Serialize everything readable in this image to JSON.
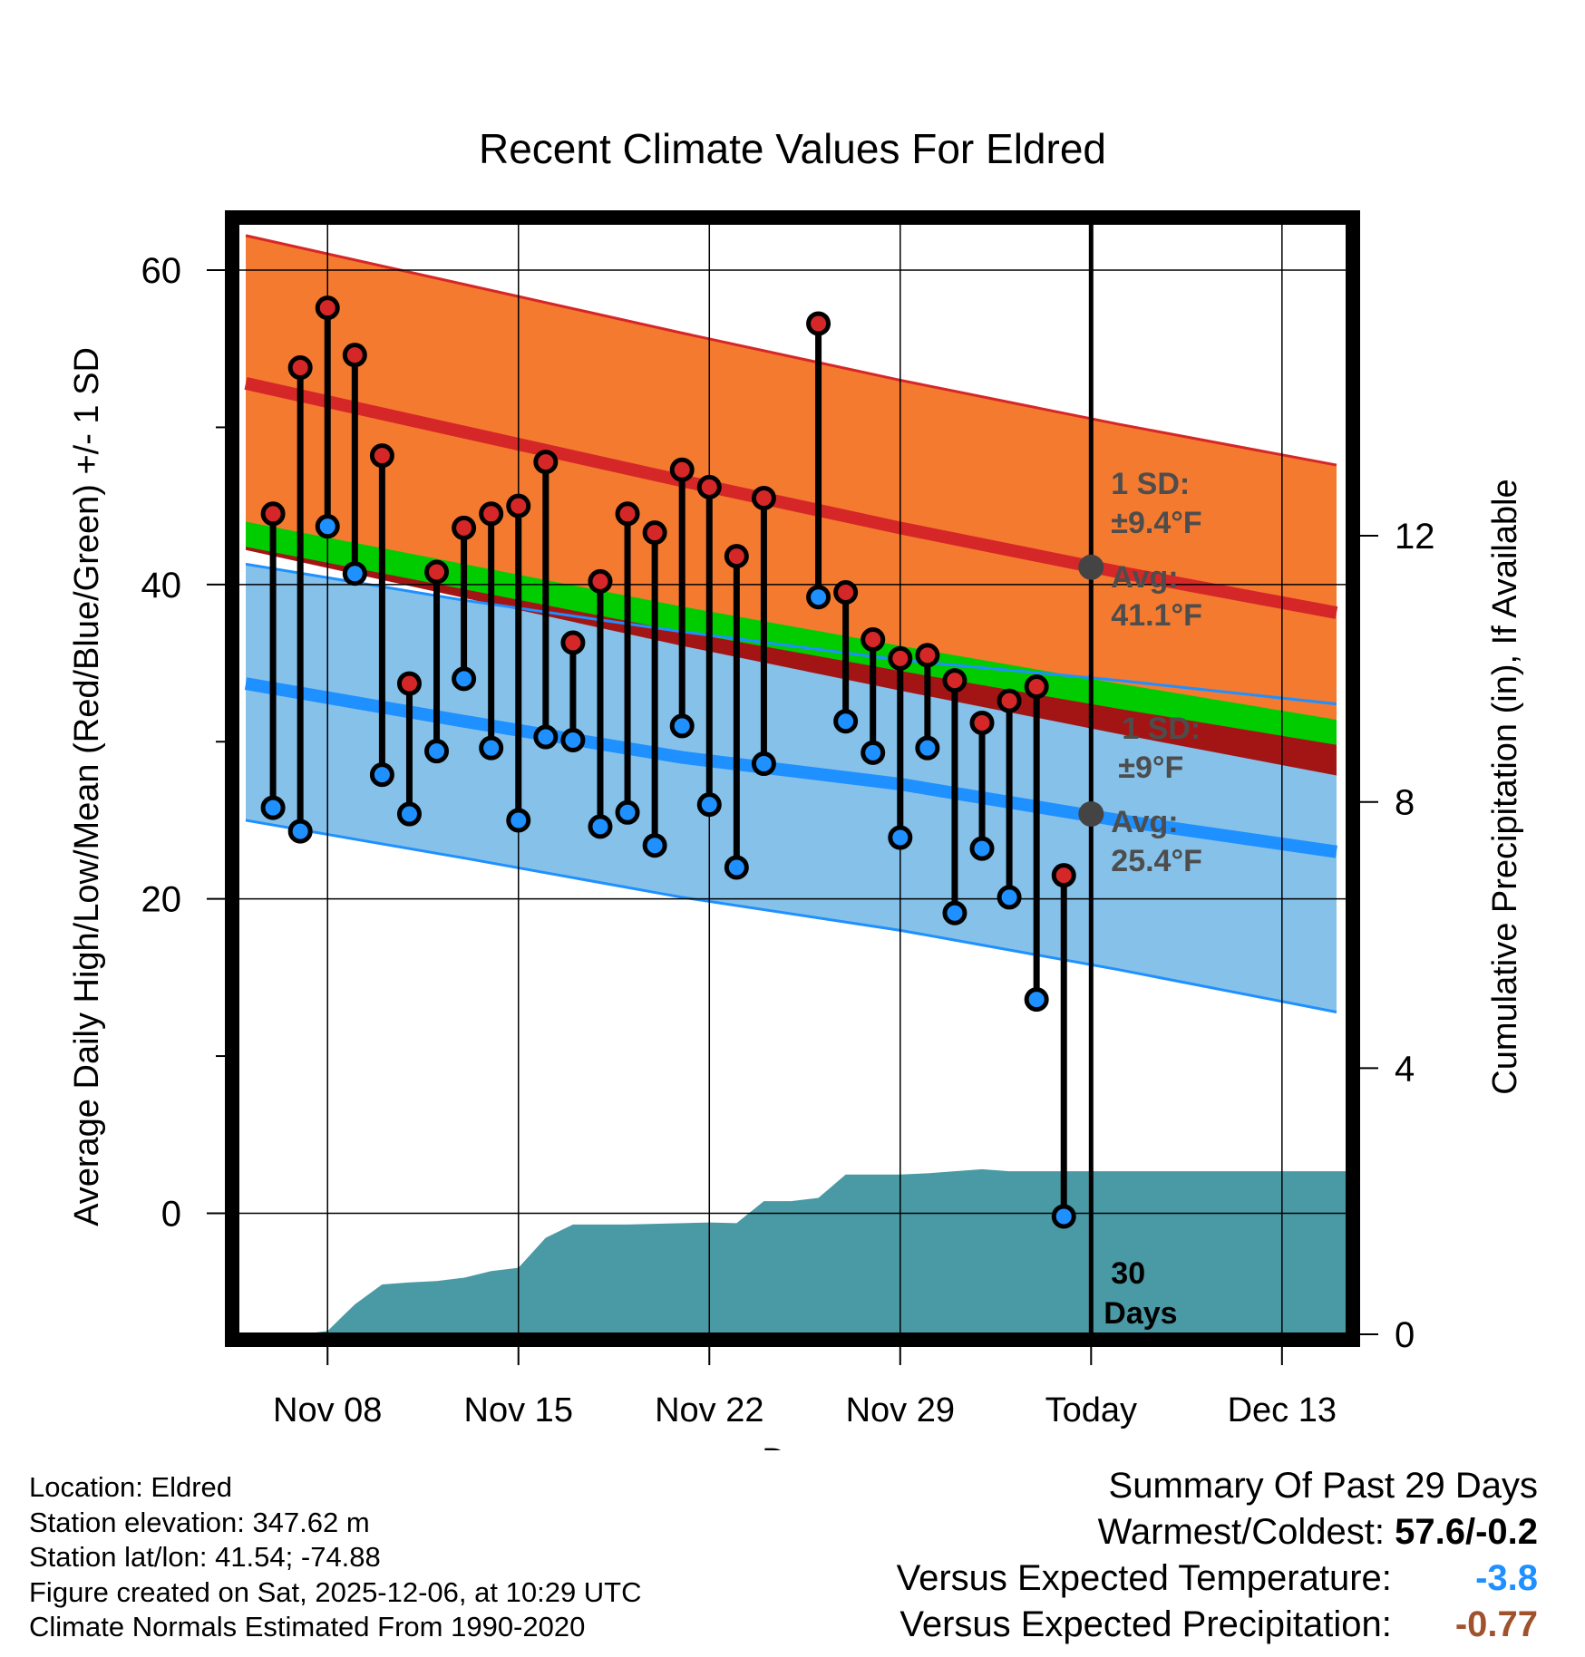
{
  "chart_data": {
    "type": "line",
    "title": "Recent Climate Values For Eldred",
    "xlabel": "Day",
    "ylabel": "Average Daily High/Low/Mean (Red/Blue/Green) +/- 1 SD",
    "y2label": "Cumulative Precipitation (in), If Available",
    "x_ticks": [
      {
        "day": 5,
        "label": "Nov 08"
      },
      {
        "day": 12,
        "label": "Nov 15"
      },
      {
        "day": 19,
        "label": "Nov 22"
      },
      {
        "day": 26,
        "label": "Nov 29"
      },
      {
        "day": 33,
        "label": "Today"
      },
      {
        "day": 40,
        "label": "Dec 13"
      }
    ],
    "xlim": [
      1.7,
      42.4
    ],
    "ylim": [
      -7.7,
      63
    ],
    "y_ticks": [
      0,
      20,
      40,
      60
    ],
    "y_minor_ticks": [
      10,
      30,
      50
    ],
    "y2_ticks": [
      0,
      4,
      8,
      12
    ],
    "y2lim": [
      0,
      16.7
    ],
    "today_day": 33,
    "normals": {
      "days": [
        2,
        10,
        18,
        26,
        34,
        42
      ],
      "high_avg": [
        52.8,
        49.7,
        46.6,
        43.6,
        40.8,
        38.2
      ],
      "high_plus_sd": [
        62.2,
        59.1,
        56.0,
        53.0,
        50.2,
        47.6
      ],
      "low_avg": [
        33.7,
        31.3,
        29.0,
        27.3,
        25.0,
        23.0
      ],
      "low_plus_sd": [
        41.3,
        39.0,
        37.0,
        35.2,
        33.9,
        32.4
      ],
      "low_minus_sd": [
        25.0,
        22.6,
        20.1,
        18.0,
        15.5,
        12.8
      ],
      "mean": [
        43.2,
        40.5,
        37.8,
        35.3,
        32.9,
        30.6
      ]
    },
    "series": [
      {
        "name": "High",
        "color": "#d62728",
        "days": [
          3,
          4,
          5,
          6,
          7,
          8,
          9,
          10,
          11,
          12,
          13,
          14,
          15,
          16,
          17,
          18,
          19,
          20,
          21,
          23,
          24,
          25,
          26,
          27,
          28,
          29,
          30,
          31,
          32
        ],
        "values": [
          44.5,
          53.8,
          57.6,
          54.6,
          48.2,
          33.7,
          40.8,
          43.6,
          44.5,
          45.0,
          47.8,
          36.3,
          40.2,
          44.5,
          43.3,
          47.3,
          46.2,
          41.8,
          45.5,
          56.6,
          39.5,
          36.5,
          35.3,
          35.5,
          33.9,
          31.2,
          32.6,
          33.5,
          21.5
        ]
      },
      {
        "name": "Low",
        "color": "#1e90ff",
        "days": [
          3,
          4,
          5,
          6,
          7,
          8,
          9,
          10,
          11,
          12,
          13,
          14,
          15,
          16,
          17,
          18,
          19,
          20,
          21,
          23,
          24,
          25,
          26,
          27,
          28,
          29,
          30,
          31,
          32
        ],
        "values": [
          25.8,
          24.3,
          43.7,
          40.7,
          27.9,
          25.4,
          29.4,
          34.0,
          29.6,
          25.0,
          30.3,
          30.1,
          24.6,
          25.5,
          23.4,
          31.0,
          26.0,
          22.0,
          28.6,
          39.2,
          31.3,
          29.3,
          23.9,
          29.6,
          19.1,
          23.2,
          20.1,
          13.6,
          -0.2
        ]
      }
    ],
    "precipitation": {
      "name": "Cumulative Precipitation (in)",
      "days": [
        2,
        4,
        5,
        6,
        7,
        8,
        9,
        10,
        11,
        12,
        13,
        14,
        15,
        16,
        17,
        18,
        19,
        20,
        21,
        22,
        23,
        24,
        25,
        26,
        27,
        28,
        29,
        30,
        31,
        32,
        33,
        42.4
      ],
      "values": [
        0,
        0,
        0.05,
        0.45,
        0.75,
        0.78,
        0.8,
        0.85,
        0.95,
        1.0,
        1.45,
        1.65,
        1.65,
        1.65,
        1.66,
        1.67,
        1.68,
        1.67,
        2.0,
        2.0,
        2.05,
        2.4,
        2.4,
        2.4,
        2.42,
        2.45,
        2.48,
        2.45,
        2.45,
        2.45,
        2.45,
        2.45
      ]
    },
    "annotations": {
      "high_sd_label": "1 SD:",
      "high_sd_value": "±9.4°F",
      "high_avg_label": "Avg:",
      "high_avg_value": "41.1°F",
      "low_sd_label": "1 SD:",
      "low_sd_value": "±9°F",
      "low_avg_label": "Avg:",
      "low_avg_value": "25.4°F",
      "precip_days_line1": "30",
      "precip_days_line2": "Days",
      "today_high_avg": 41.1,
      "today_low_avg": 25.4
    }
  },
  "colors": {
    "high_band": "#f47a30",
    "high_line": "#d62728",
    "low_band": "#85c1e9",
    "low_line": "#1e90ff",
    "mean_band": "#00cc00",
    "mean_band_dark": "#a31515",
    "precip_fill": "#4a9aa5",
    "label_gray": "#4d4d4d",
    "today_dot": "#444444",
    "summary_blue": "#1e90ff",
    "summary_brown": "#a0522d"
  },
  "info": {
    "location": "Location: Eldred",
    "elevation": "Station elevation: 347.62 m",
    "latlon": "Station lat/lon: 41.54; -74.88",
    "created": "Figure created on Sat, 2025-12-06, at 10:29 UTC",
    "normals": "Climate Normals Estimated From 1990-2020"
  },
  "summary": {
    "heading": "Summary Of Past 29 Days",
    "warmest_coldest_label": "Warmest/Coldest:",
    "warmest_coldest_value": "57.6/-0.2",
    "temp_label": "Versus Expected Temperature:",
    "temp_value": "-3.8",
    "precip_label": "Versus Expected Precipitation:",
    "precip_value": "-0.77"
  }
}
